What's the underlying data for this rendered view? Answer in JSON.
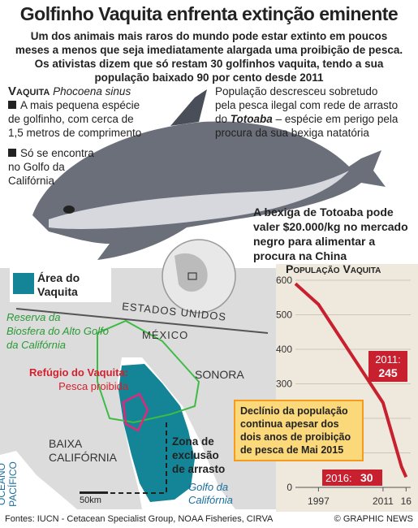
{
  "header": {
    "title": "Golfinho Vaquita enfrenta extinção eminente",
    "subtitle": [
      "Um dos animais mais raros do mundo pode estar extinto em poucos",
      "meses a menos que seja imediatamente alargada uma proibição de pesca.",
      "Os ativistas dizem que só restam 30 golfinhos vaquita, tendo a sua",
      "população baixado 90 por cento desde 2011"
    ]
  },
  "species": {
    "name": "Vaquita",
    "latin": "Phocoena sinus",
    "facts": [
      [
        "A mais pequena espécie",
        "de golfinho, com cerca de",
        "1,5 metros de comprimento"
      ],
      [
        "Só se encontra",
        "no Golfo da",
        "Califórnia"
      ]
    ]
  },
  "notes": {
    "population": [
      "População descresceu sobretudo",
      "pela pesca ilegal com rede de arrasto"
    ],
    "population_prefix": "do",
    "totoaba": "Totoaba",
    "population_rest": "–  espécie em perigo pela",
    "population_end": "procura da sua bexiga natatória",
    "bladder": [
      "A bexiga de Totoaba pode",
      "valer $20.000/kg no mercado",
      "negro para alimentar a",
      "procura na China"
    ]
  },
  "map": {
    "legend": [
      "Área do",
      "Vaquita"
    ],
    "reserve": [
      "Reserva da",
      "Biosfera do Alto Golfo",
      "da Califórnia"
    ],
    "refuge": "Refúgio do Vaquita:",
    "refuge_note": "Pesca proibida",
    "usa": "ESTADOS UNIDOS",
    "mexico": "MÉXICO",
    "sonora": "SONORA",
    "baja": [
      "BAIXA",
      "CALIFÓRNIA"
    ],
    "exclusion": [
      "Zona de",
      "exclusão",
      "de arrasto"
    ],
    "gulf": [
      "Golfo da",
      "Califórnia"
    ],
    "ocean": [
      "OCEANO",
      "PACÍFICO"
    ],
    "scale": "50km"
  },
  "chart_data": {
    "type": "line",
    "title": "População Vaquita",
    "x": [
      1992,
      1997,
      2011,
      2015,
      2016
    ],
    "values": [
      590,
      530,
      245,
      60,
      30
    ],
    "color": "#c8202f",
    "xlim": [
      1992,
      2017
    ],
    "xticks": [
      1997,
      2011,
      {
        "value": 2016,
        "label": "16"
      }
    ],
    "ylim": [
      0,
      600
    ],
    "yticks": [
      0,
      100,
      200,
      300,
      400,
      500,
      600
    ],
    "annotations": [
      "2011:",
      "2016:"
    ],
    "callout": [
      "Declínio da população",
      "continua apesar dos",
      "dois anos de proibição",
      "de pesca de Mai 2015"
    ]
  },
  "footer": {
    "sources": "Fontes: IUCN - Cetacean Specialist Group, NOAA Fisheries, CIRVA",
    "credit": "© GRAPHIC NEWS"
  }
}
